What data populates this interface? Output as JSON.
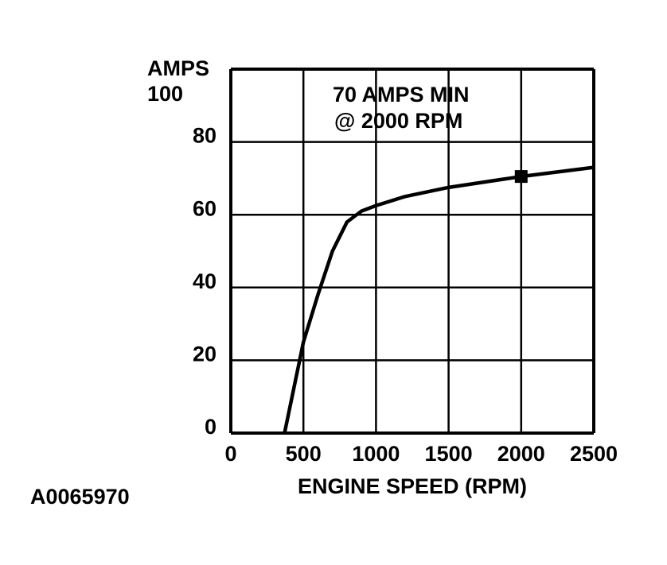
{
  "chart_data": {
    "type": "line",
    "y_label": "AMPS",
    "x_label": "ENGINE SPEED (RPM)",
    "annotation": [
      "70 AMPS MIN",
      "@ 2000 RPM"
    ],
    "figure_id": "A0065970",
    "x": [
      370,
      500,
      600,
      700,
      800,
      900,
      1000,
      1200,
      1500,
      2000,
      2500
    ],
    "series": [
      {
        "color": "#000000",
        "values": [
          0,
          25,
          38,
          50,
          58,
          61,
          62.5,
          65,
          67.5,
          70.5,
          73
        ]
      }
    ],
    "marker": {
      "x": 2000,
      "y": 70.5
    },
    "xlim": [
      0,
      2500
    ],
    "xticks": [
      0,
      500,
      1000,
      1500,
      2000,
      2500
    ],
    "ylim": [
      0,
      100
    ],
    "yticks": [
      0,
      20,
      40,
      60,
      80,
      100
    ],
    "grid": true
  }
}
